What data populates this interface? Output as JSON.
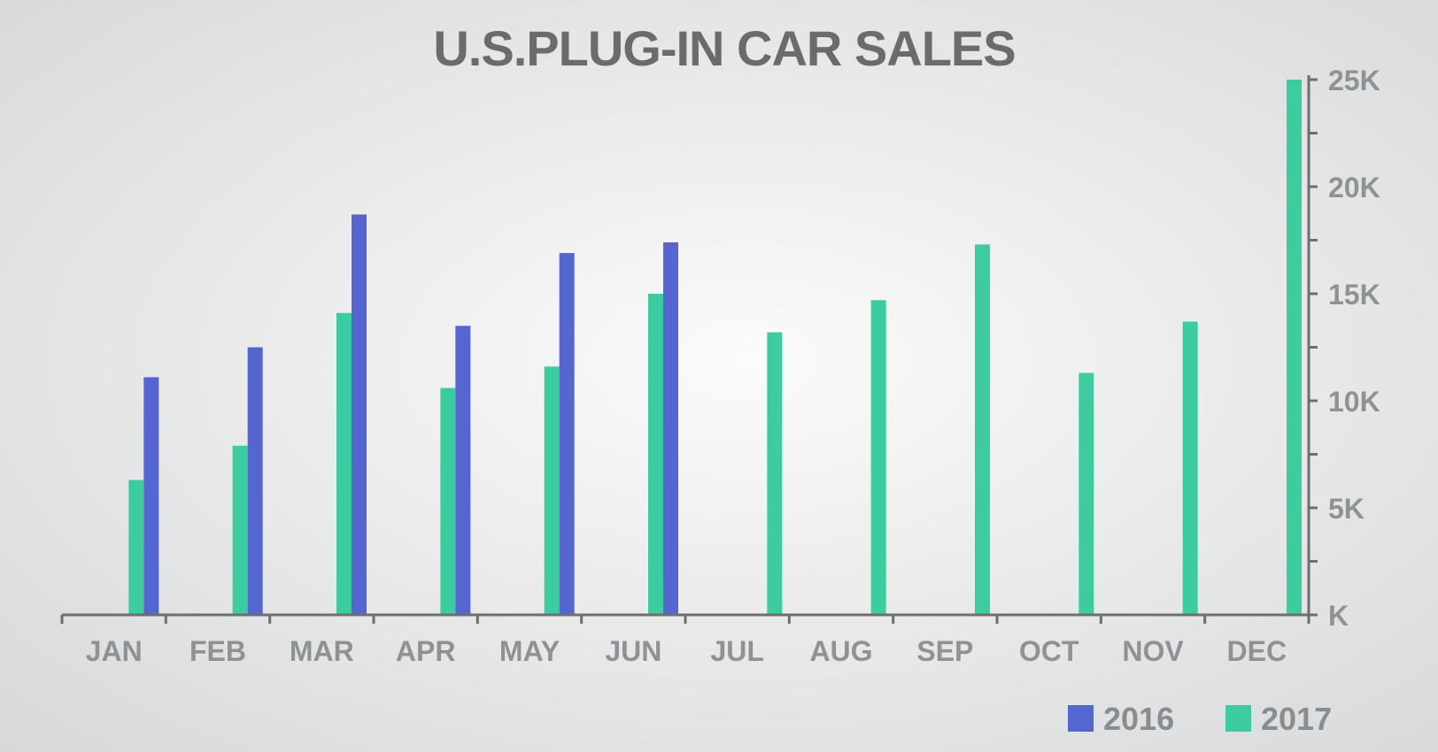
{
  "chart_data": {
    "type": "bar",
    "title": "U.S.PLUG-IN CAR SALES",
    "categories": [
      "JAN",
      "FEB",
      "MAR",
      "APR",
      "MAY",
      "JUN",
      "JUL",
      "AUG",
      "SEP",
      "OCT",
      "NOV",
      "DEC"
    ],
    "series": [
      {
        "name": "2016",
        "color": "#5566d1",
        "values": [
          11100,
          12500,
          18700,
          13500,
          16900,
          17400,
          null,
          null,
          null,
          null,
          null,
          null
        ]
      },
      {
        "name": "2017",
        "color": "#3dcca0",
        "values": [
          6300,
          7900,
          14100,
          10600,
          11600,
          15000,
          13200,
          14700,
          17300,
          11300,
          13700,
          25000
        ]
      }
    ],
    "y_ticks": [
      {
        "value": 0,
        "label": "K"
      },
      {
        "value": 5000,
        "label": "5K"
      },
      {
        "value": 10000,
        "label": "10K"
      },
      {
        "value": 15000,
        "label": "15K"
      },
      {
        "value": 20000,
        "label": "20K"
      },
      {
        "value": 25000,
        "label": "25K"
      }
    ],
    "ylim": [
      0,
      25000
    ],
    "y_axis_position": "right",
    "legend_position": "bottom-right",
    "grid": false,
    "axis_color": "#6e6e6e",
    "label_color": "#8f9294"
  }
}
